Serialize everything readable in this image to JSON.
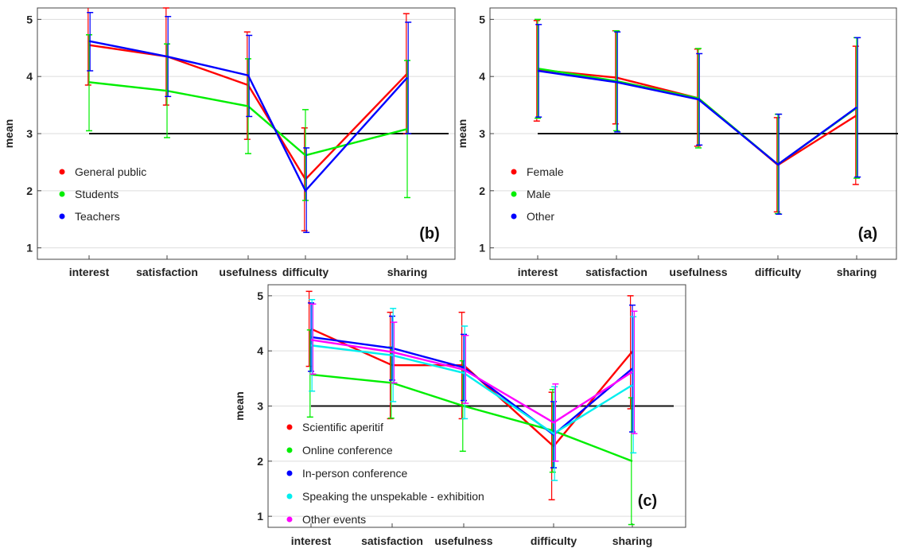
{
  "chart_data": [
    {
      "id": "b",
      "type": "line",
      "panel_label": "(b)",
      "ylabel": "mean",
      "xlabel": "",
      "categories": [
        "interest",
        "satisfaction",
        "usefulness",
        "difficulty",
        "sharing"
      ],
      "ylim": [
        0.8,
        5.2
      ],
      "yticks": [
        1,
        2,
        3,
        4,
        5
      ],
      "grid": true,
      "reference_line": 3,
      "legend_position": "bottom-left",
      "series": [
        {
          "name": "General public",
          "color": "#ff0000",
          "values": [
            4.55,
            4.35,
            3.85,
            2.2,
            4.05
          ],
          "err_low": [
            3.85,
            3.5,
            2.9,
            1.3,
            3.0
          ],
          "err_high": [
            5.25,
            5.2,
            4.78,
            3.1,
            5.1
          ]
        },
        {
          "name": "Students",
          "color": "#00ee00",
          "values": [
            3.9,
            3.75,
            3.48,
            2.62,
            3.08
          ],
          "err_low": [
            3.05,
            2.93,
            2.65,
            1.83,
            1.88
          ],
          "err_high": [
            4.73,
            4.57,
            4.31,
            3.42,
            4.28
          ]
        },
        {
          "name": "Teachers",
          "color": "#0000ff",
          "values": [
            4.62,
            4.35,
            4.02,
            2.0,
            3.98
          ],
          "err_low": [
            4.1,
            3.65,
            3.3,
            1.27,
            3.0
          ],
          "err_high": [
            5.12,
            5.05,
            4.72,
            2.75,
            4.95
          ]
        }
      ]
    },
    {
      "id": "a",
      "type": "line",
      "panel_label": "(a)",
      "ylabel": "mean",
      "xlabel": "",
      "categories": [
        "interest",
        "satisfaction",
        "usefulness",
        "difficulty",
        "sharing"
      ],
      "ylim": [
        0.8,
        5.2
      ],
      "yticks": [
        1,
        2,
        3,
        4,
        5
      ],
      "grid": true,
      "reference_line": 3,
      "legend_position": "bottom-left",
      "series": [
        {
          "name": "Female",
          "color": "#ff0000",
          "values": [
            4.12,
            3.98,
            3.62,
            2.45,
            3.32
          ],
          "err_low": [
            3.22,
            3.17,
            2.78,
            1.63,
            2.11
          ],
          "err_high": [
            4.98,
            4.8,
            4.48,
            3.28,
            4.53
          ]
        },
        {
          "name": "Male",
          "color": "#00ee00",
          "values": [
            4.14,
            3.92,
            3.62,
            2.46,
            3.45
          ],
          "err_low": [
            3.27,
            3.05,
            2.75,
            1.6,
            2.22
          ],
          "err_high": [
            5.0,
            4.8,
            4.49,
            3.34,
            4.68
          ]
        },
        {
          "name": "Other",
          "color": "#0000ff",
          "values": [
            4.1,
            3.9,
            3.6,
            2.46,
            3.46
          ],
          "err_low": [
            3.29,
            3.03,
            2.8,
            1.59,
            2.24
          ],
          "err_high": [
            4.91,
            4.78,
            4.4,
            3.34,
            4.68
          ]
        }
      ]
    },
    {
      "id": "c",
      "type": "line",
      "panel_label": "(c)",
      "ylabel": "mean",
      "xlabel": "",
      "categories": [
        "interest",
        "satisfaction",
        "usefulness",
        "difficulty",
        "sharing"
      ],
      "ylim": [
        0.8,
        5.2
      ],
      "yticks": [
        1,
        2,
        3,
        4,
        5
      ],
      "grid": true,
      "reference_line": 3,
      "legend_position": "bottom-left",
      "series": [
        {
          "name": "Scientific aperitif",
          "color": "#ff0000",
          "values": [
            4.4,
            3.74,
            3.74,
            2.27,
            3.99
          ],
          "err_low": [
            3.72,
            2.77,
            2.77,
            1.3,
            2.95
          ],
          "err_high": [
            5.08,
            4.7,
            4.7,
            3.25,
            5.0
          ]
        },
        {
          "name": "Online conference",
          "color": "#00ee00",
          "values": [
            3.57,
            3.42,
            3.0,
            2.55,
            2.0
          ],
          "err_low": [
            2.8,
            2.78,
            2.18,
            1.8,
            0.85
          ],
          "err_high": [
            4.38,
            4.07,
            3.82,
            3.3,
            3.15
          ]
        },
        {
          "name": "In-person conference",
          "color": "#0000ff",
          "values": [
            4.25,
            4.05,
            3.7,
            2.48,
            3.68
          ],
          "err_low": [
            3.63,
            3.47,
            3.1,
            1.88,
            2.53
          ],
          "err_high": [
            4.87,
            4.63,
            4.3,
            3.08,
            4.83
          ]
        },
        {
          "name": "Speaking the unspekable - exhibition",
          "color": "#00eeee",
          "values": [
            4.1,
            3.92,
            3.6,
            2.5,
            3.38
          ],
          "err_low": [
            3.27,
            3.08,
            2.77,
            1.65,
            2.15
          ],
          "err_high": [
            4.93,
            4.77,
            4.45,
            3.35,
            4.62
          ]
        },
        {
          "name": "Other events",
          "color": "#ff00ff",
          "values": [
            4.2,
            3.98,
            3.66,
            2.7,
            3.62
          ],
          "err_low": [
            3.58,
            3.42,
            3.05,
            2.0,
            2.5
          ],
          "err_high": [
            4.85,
            4.52,
            4.28,
            3.4,
            4.72
          ]
        }
      ]
    }
  ]
}
